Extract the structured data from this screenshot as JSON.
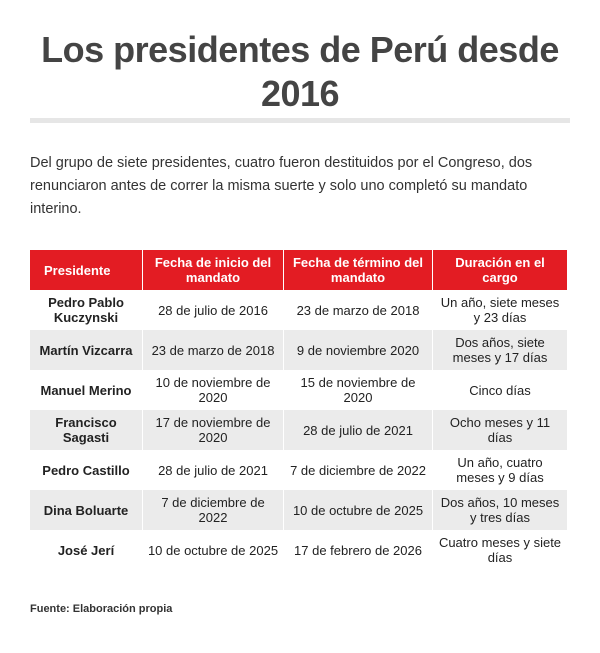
{
  "title": "Los presidentes de Perú desde 2016",
  "intro": "Del grupo de siete presidentes, cuatro fueron destituidos por el Congreso, dos renunciaron antes de correr la misma suerte y solo uno completó su mandato interino.",
  "accent_color": "#e31c23",
  "table": {
    "headers": [
      "Presidente",
      "Fecha de inicio del mandato",
      "Fecha de término del mandato",
      "Duración en el cargo"
    ],
    "rows": [
      [
        "Pedro Pablo Kuczynski",
        "28 de julio de 2016",
        "23 de marzo de 2018",
        "Un año, siete meses y 23 días"
      ],
      [
        "Martín Vizcarra",
        "23 de marzo de 2018",
        "9 de noviembre 2020",
        "Dos años, siete meses y 17 días"
      ],
      [
        "Manuel Merino",
        "10 de noviembre de 2020",
        "15 de noviembre de 2020",
        "Cinco días"
      ],
      [
        "Francisco Sagasti",
        "17 de noviembre de 2020",
        "28 de julio de 2021",
        "Ocho meses y 11 días"
      ],
      [
        "Pedro Castillo",
        "28 de julio de 2021",
        "7 de diciembre de 2022",
        "Un año, cuatro meses y 9 días"
      ],
      [
        "Dina Boluarte",
        "7 de diciembre de 2022",
        "10 de octubre de 2025",
        "Dos años, 10 meses y tres días"
      ],
      [
        "José Jerí",
        "10 de octubre de 2025",
        "17 de febrero de 2026",
        "Cuatro meses y siete días"
      ]
    ]
  },
  "source": "Fuente: Elaboración propia"
}
